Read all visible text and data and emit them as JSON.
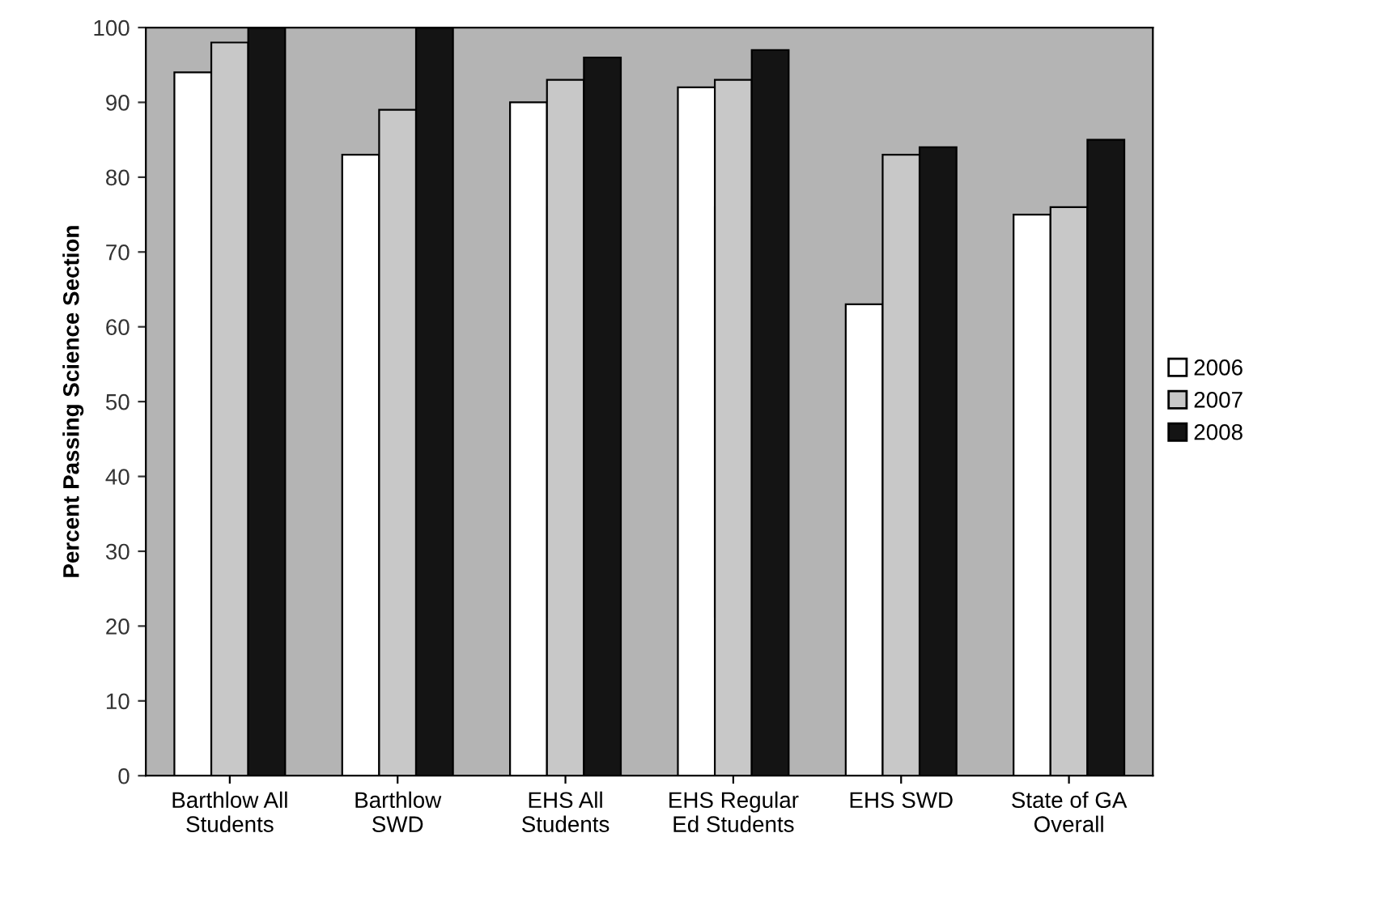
{
  "chart_data": {
    "type": "bar",
    "ylabel": "Percent Passing Science Section",
    "categories": [
      "Barthlow All\nStudents",
      "Barthlow\nSWD",
      "EHS All\nStudents",
      "EHS Regular\nEd Students",
      "EHS SWD",
      "State of GA\nOverall"
    ],
    "series": [
      {
        "name": "2006",
        "color": "#ffffff",
        "values": [
          94,
          83,
          90,
          92,
          63,
          75
        ]
      },
      {
        "name": "2007",
        "color": "#c8c8c8",
        "values": [
          98,
          89,
          93,
          93,
          83,
          76
        ]
      },
      {
        "name": "2008",
        "color": "#141414",
        "values": [
          100,
          100,
          96,
          97,
          84,
          85
        ]
      }
    ],
    "ylim": [
      0,
      100
    ],
    "yticks": [
      0,
      10,
      20,
      30,
      40,
      50,
      60,
      70,
      80,
      90,
      100
    ],
    "grid": false,
    "legend": "right"
  }
}
